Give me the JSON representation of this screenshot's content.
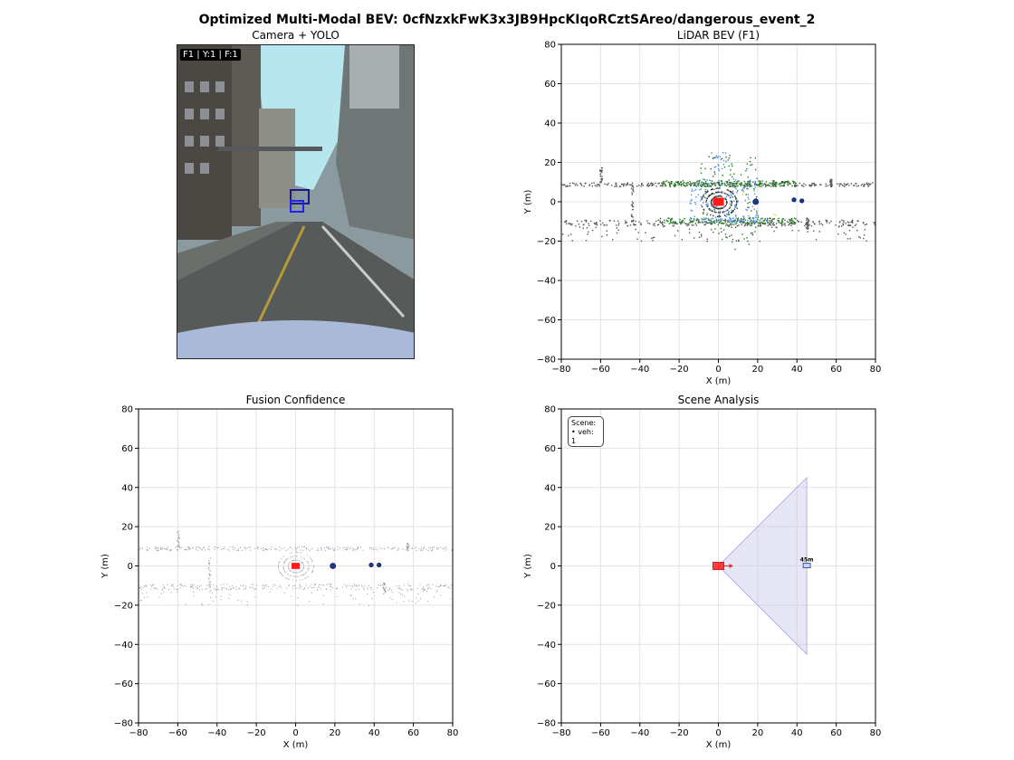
{
  "figure": {
    "suptitle": "Optimized Multi-Modal BEV: 0cfNzxkFwK3x3JB9HpcKIqoRCztSAreo/dangerous_event_2"
  },
  "camera_panel": {
    "title": "Camera + YOLO",
    "overlay": "F1 | Y:1 | F:1",
    "detection_color": "#2222ee"
  },
  "scene_panel": {
    "box_title": "Scene:",
    "box_line": "• veh: 1",
    "distance_label": "45m"
  },
  "colors": {
    "ego": "#ff1a1a",
    "vehicle": "#1f3a93",
    "ground_points": "#555555",
    "green_points": "#1e7a1e",
    "blue_points": "#4c8ee8",
    "fov": "#c8c8ec"
  },
  "chart_data": [
    {
      "type": "scatter",
      "title": "LiDAR BEV (F1)",
      "xlabel": "X (m)",
      "ylabel": "Y (m)",
      "xlim": [
        -80,
        80
      ],
      "ylim": [
        -80,
        80
      ],
      "grid": true,
      "xticks": [
        -80,
        -60,
        -40,
        -20,
        0,
        20,
        40,
        60,
        80
      ],
      "yticks": [
        -80,
        -60,
        -40,
        -20,
        0,
        20,
        40,
        60,
        80
      ],
      "ego": {
        "x": 0,
        "y": 0
      },
      "objects": [
        {
          "x": 19,
          "y": 0
        },
        {
          "x": 38.5,
          "y": 1
        },
        {
          "x": 42.5,
          "y": 0.5
        }
      ]
    },
    {
      "type": "scatter",
      "title": "Fusion Confidence",
      "xlabel": "X (m)",
      "ylabel": "Y (m)",
      "xlim": [
        -80,
        80
      ],
      "ylim": [
        -80,
        80
      ],
      "grid": true,
      "xticks": [
        -80,
        -60,
        -40,
        -20,
        0,
        20,
        40,
        60,
        80
      ],
      "yticks": [
        -80,
        -60,
        -40,
        -20,
        0,
        20,
        40,
        60,
        80
      ],
      "ego": {
        "x": 0,
        "y": 0
      },
      "objects": [
        {
          "x": 19,
          "y": 0
        },
        {
          "x": 38.5,
          "y": 0.5
        },
        {
          "x": 42.5,
          "y": 0.5
        }
      ]
    },
    {
      "type": "scatter",
      "title": "Scene Analysis",
      "xlabel": "X (m)",
      "ylabel": "Y (m)",
      "xlim": [
        -80,
        80
      ],
      "ylim": [
        -80,
        80
      ],
      "grid": true,
      "xticks": [
        -80,
        -60,
        -40,
        -20,
        0,
        20,
        40,
        60,
        80
      ],
      "yticks": [
        -80,
        -60,
        -40,
        -20,
        0,
        20,
        40,
        60,
        80
      ],
      "ego": {
        "x": 0,
        "y": 0
      },
      "fov": [
        [
          0,
          0
        ],
        [
          45,
          45
        ],
        [
          45,
          -45
        ]
      ],
      "objects": [
        {
          "x": 45,
          "y": 0,
          "label": "45m"
        }
      ]
    }
  ]
}
